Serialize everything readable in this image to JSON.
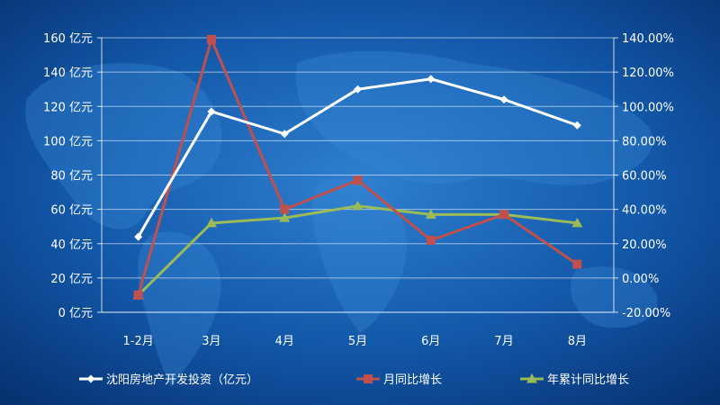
{
  "chart_data": {
    "type": "line",
    "categories": [
      "1-2月",
      "3月",
      "4月",
      "5月",
      "6月",
      "7月",
      "8月"
    ],
    "left_axis": {
      "ylim": [
        0,
        160
      ],
      "ticks": [
        0,
        20,
        40,
        60,
        80,
        100,
        120,
        140,
        160
      ],
      "tick_labels": [
        "0 亿元",
        "20 亿元",
        "40 亿元",
        "60 亿元",
        "80 亿元",
        "100 亿元",
        "120 亿元",
        "140 亿元",
        "160 亿元"
      ]
    },
    "right_axis": {
      "ylim": [
        -20,
        140
      ],
      "ticks": [
        -20,
        0,
        20,
        40,
        60,
        80,
        100,
        120,
        140
      ],
      "tick_labels": [
        "-20.00%",
        "0.00%",
        "20.00%",
        "40.00%",
        "60.00%",
        "80.00%",
        "100.00%",
        "120.00%",
        "140.00%"
      ]
    },
    "grid": "horizontal",
    "legend_position": "bottom",
    "series": [
      {
        "name": "沈阳房地产开发投资（亿元）",
        "axis": "left",
        "color": "#ffffff",
        "marker": "diamond",
        "values": [
          44,
          117,
          104,
          130,
          136,
          124,
          109
        ]
      },
      {
        "name": "月同比增长",
        "axis": "right",
        "color": "#c0504d",
        "marker": "square",
        "values": [
          -10,
          139,
          40,
          57,
          22,
          37,
          8
        ]
      },
      {
        "name": "年累计同比增长",
        "axis": "right",
        "color": "#9bbb59",
        "marker": "triangle",
        "values": [
          -10,
          32,
          35,
          42,
          37,
          37,
          32
        ]
      }
    ]
  },
  "legend": {
    "items": [
      "沈阳房地产开发投资（亿元）",
      "月同比增长",
      "年累计同比增长"
    ]
  }
}
